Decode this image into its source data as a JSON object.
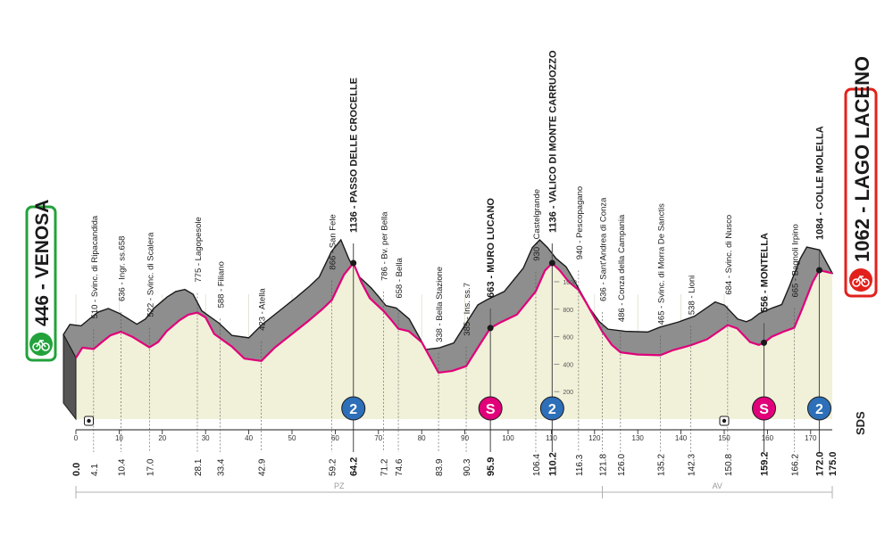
{
  "colors": {
    "pink": "#e1007a",
    "grey_fill": "#8e8e8e",
    "pale_fill": "#f1f1d9",
    "start_green": "#23a23b",
    "finish_red": "#e2211c",
    "kom_blue": "#2d6fb8"
  },
  "start": {
    "altitude": "446",
    "name": "VENOSA",
    "icon": "bicycle-icon"
  },
  "finish": {
    "altitude": "1062",
    "name": "LAGO LACENO",
    "icon": "bicycle-icon"
  },
  "corner_label": "SDS",
  "provinces": [
    {
      "label": "PZ",
      "from_km": 0,
      "to_km": 121.8
    },
    {
      "label": "AV",
      "from_km": 121.8,
      "to_km": 175.0
    }
  ],
  "chart_data": {
    "type": "area",
    "title": "",
    "xlabel": "",
    "ylabel": "",
    "xlim": [
      0,
      175
    ],
    "ylim": [
      0,
      1200
    ],
    "x_ticks": [
      0,
      10,
      20,
      30,
      40,
      50,
      60,
      70,
      80,
      90,
      100,
      110,
      120,
      130,
      140,
      150,
      160,
      170
    ],
    "y_ticks": [
      200,
      400,
      600,
      800,
      1000
    ],
    "profile": [
      [
        0,
        446
      ],
      [
        1.5,
        520
      ],
      [
        4.1,
        510
      ],
      [
        6,
        560
      ],
      [
        8,
        610
      ],
      [
        10.4,
        636
      ],
      [
        13,
        600
      ],
      [
        17,
        522
      ],
      [
        19,
        560
      ],
      [
        21,
        640
      ],
      [
        24,
        720
      ],
      [
        26,
        760
      ],
      [
        28.1,
        775
      ],
      [
        30,
        740
      ],
      [
        32,
        620
      ],
      [
        33.4,
        588
      ],
      [
        36,
        530
      ],
      [
        39,
        440
      ],
      [
        42.9,
        423
      ],
      [
        46,
        520
      ],
      [
        50,
        620
      ],
      [
        54,
        720
      ],
      [
        57,
        800
      ],
      [
        59.2,
        866
      ],
      [
        62,
        1050
      ],
      [
        64.2,
        1136
      ],
      [
        66,
        1000
      ],
      [
        68,
        880
      ],
      [
        71.2,
        786
      ],
      [
        73,
        720
      ],
      [
        74.6,
        658
      ],
      [
        77,
        640
      ],
      [
        80,
        560
      ],
      [
        83.9,
        338
      ],
      [
        87,
        350
      ],
      [
        90.3,
        385
      ],
      [
        93,
        520
      ],
      [
        95.9,
        663
      ],
      [
        98,
        700
      ],
      [
        102,
        760
      ],
      [
        106.4,
        930
      ],
      [
        108.5,
        1080
      ],
      [
        110.2,
        1136
      ],
      [
        112,
        1080
      ],
      [
        114,
        1000
      ],
      [
        116.3,
        940
      ],
      [
        118,
        850
      ],
      [
        121.8,
        636
      ],
      [
        124,
        540
      ],
      [
        126,
        486
      ],
      [
        130,
        470
      ],
      [
        135.2,
        465
      ],
      [
        138,
        500
      ],
      [
        142.3,
        538
      ],
      [
        146,
        580
      ],
      [
        150.8,
        684
      ],
      [
        153,
        660
      ],
      [
        156,
        560
      ],
      [
        158,
        540
      ],
      [
        159.2,
        556
      ],
      [
        161,
        600
      ],
      [
        164,
        640
      ],
      [
        166.2,
        665
      ],
      [
        168,
        800
      ],
      [
        170.5,
        1000
      ],
      [
        172,
        1084
      ],
      [
        175,
        1062
      ]
    ],
    "points": [
      {
        "km": 4.1,
        "km_label": "4.1",
        "alt": 510,
        "name": "Svinc. di Ripacandida",
        "bold": false
      },
      {
        "km": 10.4,
        "km_label": "10.4",
        "alt": 636,
        "name": "Ingr. ss.658",
        "bold": false
      },
      {
        "km": 17.0,
        "km_label": "17.0",
        "alt": 522,
        "name": "Svinc. di Scalera",
        "bold": false
      },
      {
        "km": 28.1,
        "km_label": "28.1",
        "alt": 775,
        "name": "Lagopesole",
        "bold": false
      },
      {
        "km": 33.4,
        "km_label": "33.4",
        "alt": 588,
        "name": "Filiano",
        "bold": false
      },
      {
        "km": 42.9,
        "km_label": "42.9",
        "alt": 423,
        "name": "Atella",
        "bold": false
      },
      {
        "km": 59.2,
        "km_label": "59.2",
        "alt": 866,
        "name": "San Fele",
        "bold": false
      },
      {
        "km": 64.2,
        "km_label": "64.2",
        "alt": 1136,
        "name": "PASSO DELLE CROCELLE",
        "bold": true
      },
      {
        "km": 71.2,
        "km_label": "71.2",
        "alt": 786,
        "name": "Bv. per Bella",
        "bold": false
      },
      {
        "km": 74.6,
        "km_label": "74.6",
        "alt": 658,
        "name": "Bella",
        "bold": false
      },
      {
        "km": 83.9,
        "km_label": "83.9",
        "alt": 338,
        "name": "Bella Stazione",
        "bold": false
      },
      {
        "km": 90.3,
        "km_label": "90.3",
        "alt": 385,
        "name": "Ins. ss.7",
        "bold": false
      },
      {
        "km": 95.9,
        "km_label": "95.9",
        "alt": 663,
        "name": "MURO LUCANO",
        "bold": true
      },
      {
        "km": 106.4,
        "km_label": "106.4",
        "alt": 930,
        "name": "Castelgrande",
        "bold": false
      },
      {
        "km": 110.2,
        "km_label": "110.2",
        "alt": 1136,
        "name": "VALICO DI MONTE CARRUOZZO",
        "bold": true
      },
      {
        "km": 116.3,
        "km_label": "116.3",
        "alt": 940,
        "name": "Pescopagano",
        "bold": false
      },
      {
        "km": 121.8,
        "km_label": "121.8",
        "alt": 636,
        "name": "Sant'Andrea di Conza",
        "bold": false
      },
      {
        "km": 126.0,
        "km_label": "126.0",
        "alt": 486,
        "name": "Conza della Campania",
        "bold": false
      },
      {
        "km": 135.2,
        "km_label": "135.2",
        "alt": 465,
        "name": "Svinc. di Morra De Sanctis",
        "bold": false
      },
      {
        "km": 142.3,
        "km_label": "142.3",
        "alt": 538,
        "name": "Lioni",
        "bold": false
      },
      {
        "km": 150.8,
        "km_label": "150.8",
        "alt": 684,
        "name": "Svinc. di Nusco",
        "bold": false
      },
      {
        "km": 159.2,
        "km_label": "159.2",
        "alt": 556,
        "name": "MONTELLA",
        "bold": true
      },
      {
        "km": 166.2,
        "km_label": "166.2",
        "alt": 665,
        "name": "Bagnoli Irpino",
        "bold": false
      },
      {
        "km": 172.0,
        "km_label": "172.0",
        "alt": 1084,
        "name": "COLLE MOLELLA",
        "bold": true
      }
    ],
    "start_km_label": "0.0",
    "finish_km_label": "175.0",
    "markers": [
      {
        "type": "kom",
        "label": "2",
        "km": 64.2
      },
      {
        "type": "sprint",
        "label": "S",
        "km": 95.9
      },
      {
        "type": "kom",
        "label": "2",
        "km": 110.2
      },
      {
        "type": "sprint",
        "label": "S",
        "km": 159.2
      },
      {
        "type": "kom",
        "label": "2",
        "km": 172.0
      }
    ],
    "feed_zones": [
      3,
      150
    ]
  }
}
